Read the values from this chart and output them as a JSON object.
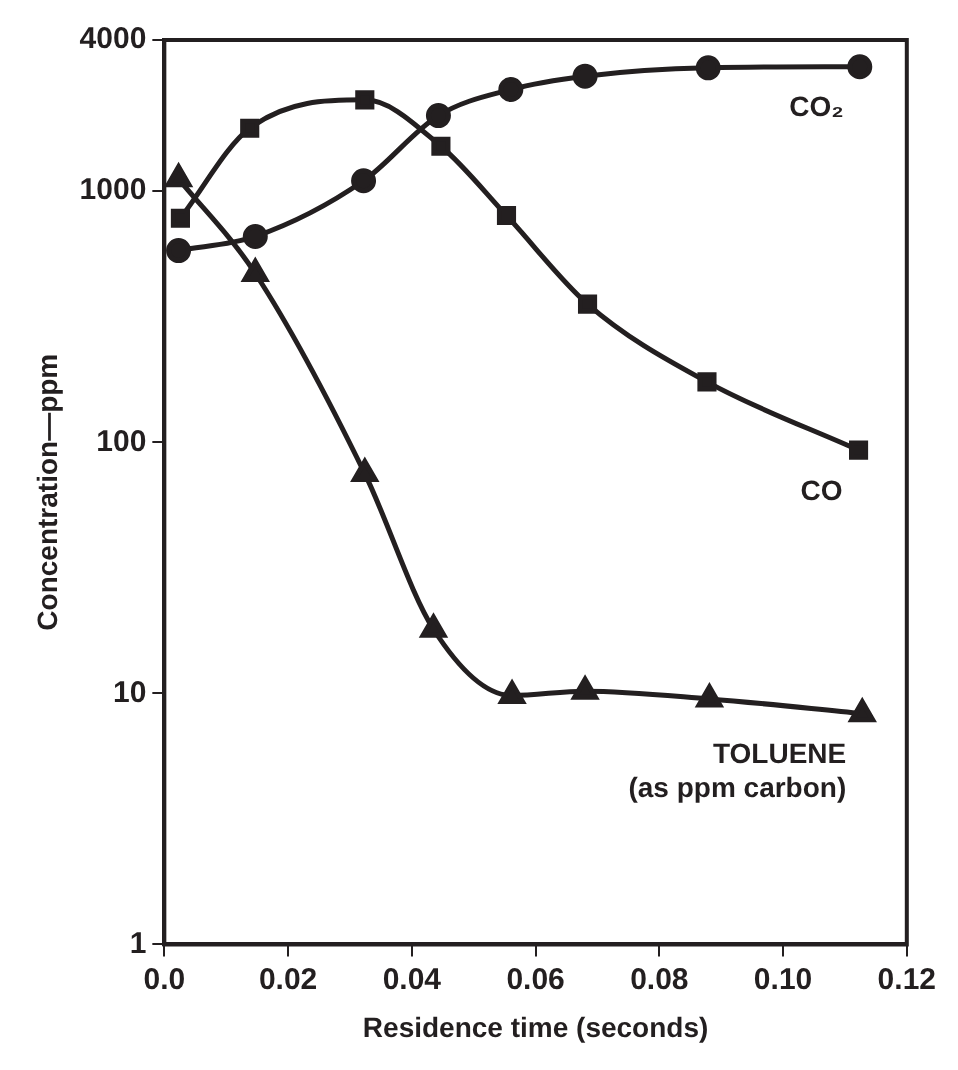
{
  "chart_data": {
    "type": "line",
    "xlabel": "Residence time (seconds)",
    "ylabel": "Concentration—ppm",
    "log": "y",
    "grid": false,
    "legend": false,
    "line_style": "solid",
    "xlim": [
      0,
      0.12
    ],
    "xticks": [
      {
        "value": 0,
        "label": "0.0"
      },
      0.02,
      0.04,
      0.06,
      0.08,
      {
        "value": 0.1,
        "label": "0.10"
      },
      0.12
    ],
    "ylim": [
      1,
      4000
    ],
    "yticks": [
      1,
      10,
      100,
      1000,
      4000
    ],
    "series": [
      {
        "name": "CO₂",
        "color": "#231f20",
        "marker": "circle",
        "x": [
          0.0023,
          0.0147,
          0.0322,
          0.0443,
          0.056,
          0.068,
          0.0879,
          0.1124
        ],
        "values": [
          580,
          660,
          1100,
          2000,
          2540,
          2870,
          3100,
          3130
        ]
      },
      {
        "name": "CO",
        "color": "#231f20",
        "marker": "square",
        "x": [
          0.0026,
          0.0138,
          0.0324,
          0.0447,
          0.0553,
          0.0684,
          0.0877,
          0.1122
        ],
        "values": [
          780,
          1780,
          2310,
          1510,
          800,
          355,
          174,
          93
        ]
      },
      {
        "name": "TOLUENE\n(as ppm carbon)",
        "color": "#231f20",
        "marker": "triangle",
        "x": [
          0.0023,
          0.0147,
          0.0324,
          0.0435,
          0.0562,
          0.068,
          0.0881,
          0.1128
        ],
        "values": [
          1120,
          470,
          75,
          18,
          9.8,
          10.2,
          9.5,
          8.3
        ]
      }
    ]
  }
}
